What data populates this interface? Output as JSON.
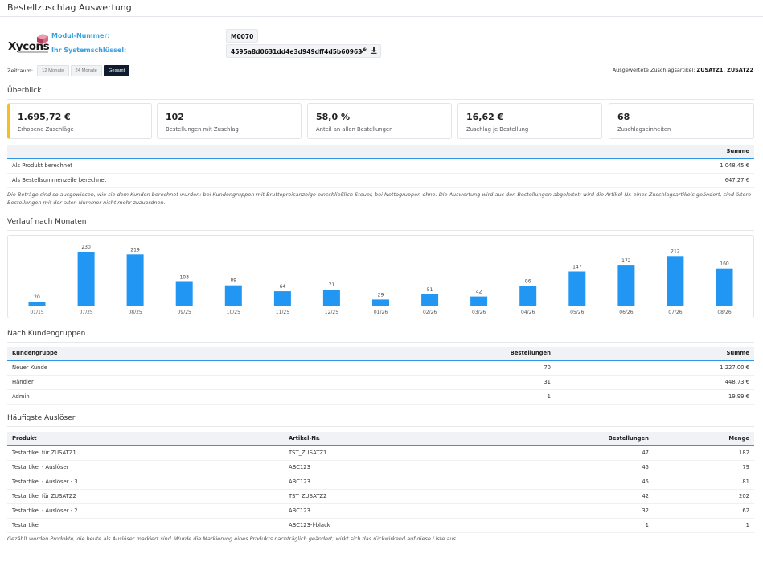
{
  "page": {
    "title": "Bestellzuschlag Auswertung"
  },
  "module": {
    "label_number": "Modul-Nummer:",
    "label_key": "Ihr Systemschlüssel:",
    "number": "M0070",
    "key": "4595a8d0631dd4e3d949dff4d5b60963",
    "logo_text": "Xycons",
    "icons": [
      "wrench-icon",
      "download-icon"
    ]
  },
  "filter": {
    "label": "Zeitraum:",
    "options": [
      "12 Monate",
      "24 Monate",
      "Gesamt"
    ],
    "active": "Gesamt"
  },
  "evaluated": {
    "label": "Ausgewertete Zuschlagsartikel:",
    "value": "ZUSATZ1, ZUSATZ2"
  },
  "overview": {
    "title": "Überblick",
    "accent_color": "#f4bf24",
    "kpis": [
      {
        "value": "1.695,72 €",
        "label": "Erhobene Zuschläge"
      },
      {
        "value": "102",
        "label": "Bestellungen mit Zuschlag"
      },
      {
        "value": "58,0 %",
        "label": "Anteil an allen Bestellungen"
      },
      {
        "value": "16,62 €",
        "label": "Zuschlag je Bestellung"
      },
      {
        "value": "68",
        "label": "Zuschlagseinheiten"
      }
    ],
    "table": {
      "header_sum": "Summe",
      "rows": [
        {
          "label": "Als Produkt berechnet",
          "sum": "1.048,45 €"
        },
        {
          "label": "Als Bestellsummenzeile berechnet",
          "sum": "647,27 €"
        }
      ]
    },
    "note": "Die Beträge sind so ausgewiesen, wie sie dem Kunden berechnet wurden: bei Kundengruppen mit Bruttopreisanzeige einschließlich Steuer, bei Nettogruppen ohne. Die Auswertung wird aus den Bestellungen abgeleitet; wird die Artikel-Nr. eines Zuschlagsartikels geändert, sind ältere Bestellungen mit der alten Nummer nicht mehr zuzuordnen."
  },
  "monthly": {
    "title": "Verlauf nach Monaten",
    "bar_color": "#2196f3"
  },
  "chart_data": {
    "type": "bar",
    "title": "",
    "xlabel": "",
    "ylabel": "",
    "categories": [
      "01/15",
      "07/25",
      "08/25",
      "09/25",
      "10/25",
      "11/25",
      "12/25",
      "01/26",
      "02/26",
      "03/26",
      "04/26",
      "05/26",
      "06/26",
      "07/26",
      "08/26"
    ],
    "values": [
      20,
      230,
      219,
      103,
      89,
      64,
      71,
      29,
      51,
      42,
      86,
      147,
      172,
      212,
      160
    ],
    "data_labels": true,
    "grid": false,
    "legend": "none"
  },
  "groups": {
    "title": "Nach Kundengruppen",
    "headers": {
      "group": "Kundengruppe",
      "orders": "Bestellungen",
      "sum": "Summe"
    },
    "rows": [
      {
        "group": "Neuer Kunde",
        "orders": "70",
        "sum": "1.227,00 €"
      },
      {
        "group": "Händler",
        "orders": "31",
        "sum": "448,73 €"
      },
      {
        "group": "Admin",
        "orders": "1",
        "sum": "19,99 €"
      }
    ]
  },
  "triggers": {
    "title": "Häufigste Auslöser",
    "headers": {
      "product": "Produkt",
      "sku": "Artikel-Nr.",
      "orders": "Bestellungen",
      "qty": "Menge"
    },
    "rows": [
      {
        "product": "Testartikel für ZUSATZ1",
        "sku": "TST_ZUSATZ1",
        "orders": "47",
        "qty": "182"
      },
      {
        "product": "Testartikel - Auslöser",
        "sku": "ABC123",
        "orders": "45",
        "qty": "79"
      },
      {
        "product": "Testartikel - Auslöser - 3",
        "sku": "ABC123",
        "orders": "45",
        "qty": "81"
      },
      {
        "product": "Testartikel für ZUSATZ2",
        "sku": "TST_ZUSATZ2",
        "orders": "42",
        "qty": "202"
      },
      {
        "product": "Testartikel - Auslöser - 2",
        "sku": "ABC123",
        "orders": "32",
        "qty": "62"
      },
      {
        "product": "Testartikel",
        "sku": "ABC123-l-black",
        "orders": "1",
        "qty": "1"
      }
    ],
    "note": "Gezählt werden Produkte, die heute als Auslöser markiert sind. Wurde die Markierung eines Produkts nachträglich geändert, wirkt sich das rückwirkend auf diese Liste aus."
  }
}
